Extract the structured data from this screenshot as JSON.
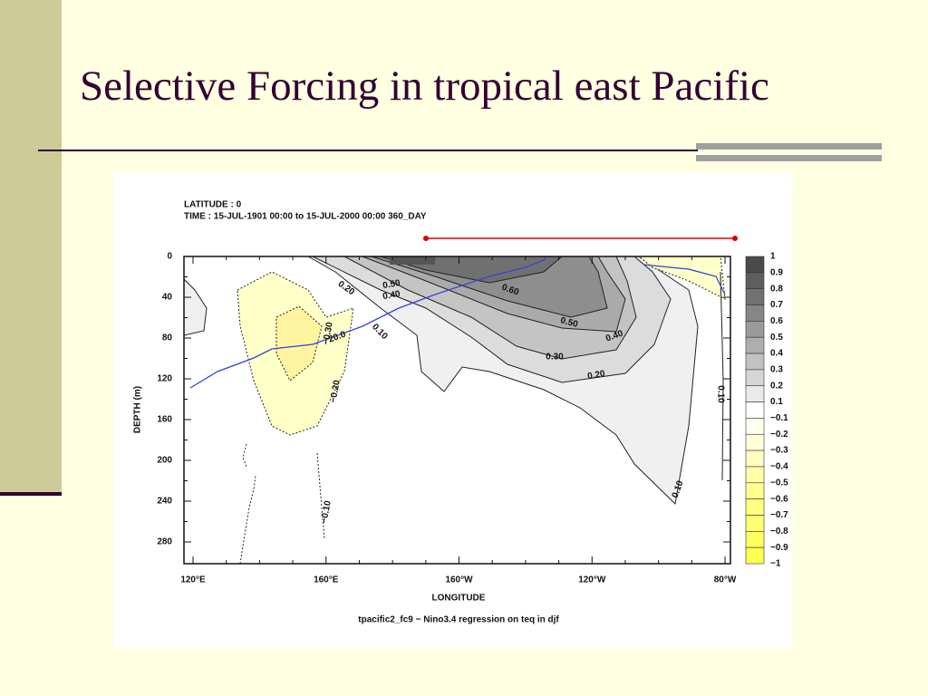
{
  "slide": {
    "title": "Selective Forcing in tropical east Pacific"
  },
  "figure": {
    "header": [
      "LATITUDE : 0",
      "TIME : 15-JUL-1901 00:00 to 15-JUL-2000 00:00 360_DAY"
    ],
    "y_label": "DEPTH (m)",
    "y_ticks": [
      "0",
      "40",
      "80",
      "120",
      "160",
      "200",
      "240",
      "280"
    ],
    "x_label": "LONGITUDE",
    "x_ticks": [
      "120°E",
      "160°E",
      "160°W",
      "120°W",
      "80°W"
    ],
    "caption": "tpacific2_fc9 − Nino3.4 regression on teq in djf",
    "colorbar": [
      "1",
      "0.9",
      "0.8",
      "0.7",
      "0.6",
      "0.5",
      "0.4",
      "0.3",
      "0.2",
      "0.1",
      "−0.1",
      "−0.2",
      "−0.3",
      "−0.4",
      "−0.5",
      "−0.6",
      "−0.7",
      "−0.8",
      "−0.9",
      "−1"
    ],
    "contour_labels": [
      "0.20",
      "0.50",
      "0.40",
      "0.60",
      "0.50",
      "0.40",
      "0.30",
      "0.20",
      "0.10",
      "0.10",
      "0.10",
      "−0.20",
      "−0.30",
      "−0.10",
      "20.0"
    ]
  }
}
